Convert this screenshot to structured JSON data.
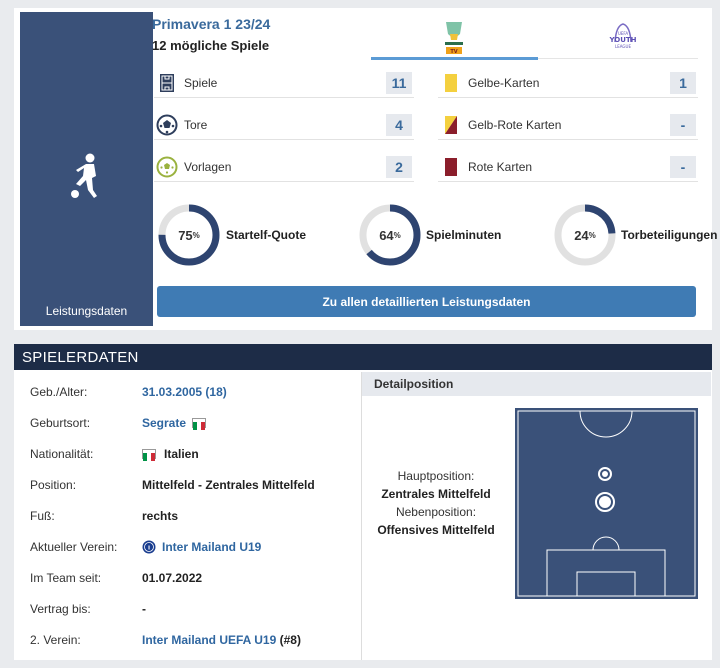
{
  "performance": {
    "side_label": "Leistungsdaten",
    "competition_title": "Primavera 1 23/24",
    "games_possible": "12 mögliche Spiele",
    "stats_left": [
      {
        "label": "Spiele",
        "value": "11",
        "icon": "pitch-icon"
      },
      {
        "label": "Tore",
        "value": "4",
        "icon": "football-icon"
      },
      {
        "label": "Vorlagen",
        "value": "2",
        "icon": "assist-icon"
      }
    ],
    "stats_right": [
      {
        "label": "Gelbe-Karten",
        "value": "1",
        "color": "#f4d03f"
      },
      {
        "label": "Gelb-Rote Karten",
        "value": "-",
        "color": "#d4a017"
      },
      {
        "label": "Rote Karten",
        "value": "-",
        "color": "#8b1e2b"
      }
    ],
    "donuts": [
      {
        "pct": "75",
        "unit": "%",
        "label": "Startelf-Quote",
        "fraction": 0.75
      },
      {
        "pct": "64",
        "unit": "%",
        "label": "Spielminuten",
        "fraction": 0.64
      },
      {
        "pct": "24",
        "unit": "%",
        "label": "Torbeteiligungen",
        "fraction": 0.24
      }
    ],
    "detail_button": "Zu allen detaillierten Leistungsdaten"
  },
  "player": {
    "header": "SPIELERDATEN",
    "rows": [
      {
        "key": "Geb./Alter:",
        "value": "31.03.2005 (18)"
      },
      {
        "key": "Geburtsort:",
        "value": "Segrate"
      },
      {
        "key": "Nationalität:",
        "value": "Italien"
      },
      {
        "key": "Position:",
        "value": "Mittelfeld - Zentrales Mittelfeld"
      },
      {
        "key": "Fuß:",
        "value": "rechts"
      },
      {
        "key": "Aktueller Verein:",
        "value": "Inter Mailand U19"
      },
      {
        "key": "Im Team seit:",
        "value": "01.07.2022"
      },
      {
        "key": "Vertrag bis:",
        "value": "-"
      },
      {
        "key": "2. Verein:",
        "value": "Inter Mailand UEFA U19",
        "suffix": "(#8)"
      }
    ],
    "detail_position": {
      "header": "Detailposition",
      "main_label": "Hauptposition:",
      "main_value": "Zentrales Mittelfeld",
      "side_label": "Nebenposition:",
      "side_value": "Offensives Mittelfeld"
    }
  },
  "colors": {
    "brand_dark": "#1d2c47",
    "brand_blue": "#3a5179",
    "link": "#2f66a0",
    "button": "#3f7bb4"
  }
}
